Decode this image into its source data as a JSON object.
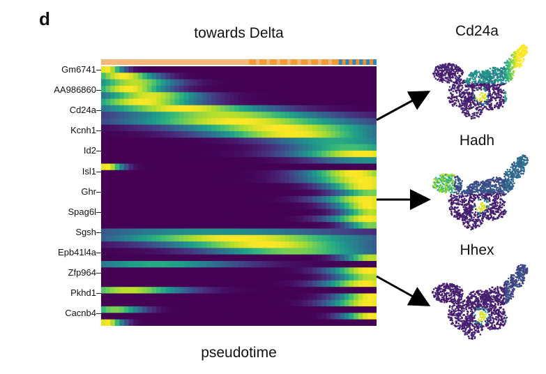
{
  "panel_label": "d",
  "chart_data": {
    "type": "heatmap",
    "title": "towards Delta",
    "xlabel": "pseudotime",
    "ylabel": "",
    "row_labels": [
      "Gm6741",
      "AA986860",
      "Cd24a",
      "Kcnh1",
      "Id2",
      "Isl1",
      "Ghr",
      "Spag6l",
      "Sgsh",
      "Epb41l4a",
      "Zfp964",
      "Pkhd1",
      "Cacnb4"
    ],
    "colormap": "viridis",
    "value_range": [
      0,
      1
    ],
    "n_rows": 40,
    "pseudotime_bar_colors": [
      "#f6b87a",
      "#f39a35",
      "#ef8f2c",
      "#2f86c4"
    ],
    "rows": [
      {
        "peak": 0.02,
        "width": 0.06,
        "amp": 1.0
      },
      {
        "peak": 0.08,
        "width": 0.12,
        "amp": 1.0
      },
      {
        "peak": 0.12,
        "width": 0.15,
        "amp": 0.9
      },
      {
        "peak": 0.1,
        "width": 0.14,
        "amp": 1.0
      },
      {
        "peak": 0.18,
        "width": 0.18,
        "amp": 0.95
      },
      {
        "peak": 0.15,
        "width": 0.2,
        "amp": 1.0
      },
      {
        "peak": 0.3,
        "width": 0.3,
        "amp": 1.0
      },
      {
        "peak": 0.45,
        "width": 0.35,
        "amp": 0.9
      },
      {
        "peak": 0.5,
        "width": 0.4,
        "amp": 1.0
      },
      {
        "peak": 0.65,
        "width": 0.35,
        "amp": 1.0
      },
      {
        "peak": 0.7,
        "width": 0.3,
        "amp": 1.0
      },
      {
        "peak": 0.85,
        "width": 0.25,
        "amp": 0.6
      },
      {
        "peak": 0.9,
        "width": 0.22,
        "amp": 0.7
      },
      {
        "peak": 0.95,
        "width": 0.25,
        "amp": 1.0
      },
      {
        "peak": 0.97,
        "width": 0.2,
        "amp": 0.5
      },
      {
        "peak": 0.02,
        "width": 0.06,
        "amp": 1.0
      },
      {
        "peak": 0.92,
        "width": 0.18,
        "amp": 1.0
      },
      {
        "peak": 0.95,
        "width": 0.2,
        "amp": 1.0
      },
      {
        "peak": 0.96,
        "width": 0.14,
        "amp": 1.0
      },
      {
        "peak": 0.98,
        "width": 0.12,
        "amp": 0.8
      },
      {
        "peak": 0.96,
        "width": 0.16,
        "amp": 1.0
      },
      {
        "peak": 0.97,
        "width": 0.12,
        "amp": 1.0
      },
      {
        "peak": 0.98,
        "width": 0.1,
        "amp": 0.9
      },
      {
        "peak": 0.97,
        "width": 0.14,
        "amp": 1.0
      },
      {
        "peak": 0.98,
        "width": 0.09,
        "amp": 0.8
      },
      {
        "peak": 0.4,
        "width": 0.5,
        "amp": 0.5
      },
      {
        "peak": 0.5,
        "width": 0.45,
        "amp": 1.0
      },
      {
        "peak": 0.6,
        "width": 0.35,
        "amp": 1.0
      },
      {
        "peak": 0.7,
        "width": 0.3,
        "amp": 0.8
      },
      {
        "peak": 0.98,
        "width": 0.1,
        "amp": 0.9
      },
      {
        "peak": 0.2,
        "width": 0.3,
        "amp": 0.6
      },
      {
        "peak": 0.97,
        "width": 0.14,
        "amp": 1.0
      },
      {
        "peak": 0.98,
        "width": 0.12,
        "amp": 0.9
      },
      {
        "peak": 0.96,
        "width": 0.15,
        "amp": 1.0
      },
      {
        "peak": 0.1,
        "width": 0.2,
        "amp": 0.9
      },
      {
        "peak": 0.98,
        "width": 0.12,
        "amp": 1.0
      },
      {
        "peak": 0.97,
        "width": 0.14,
        "amp": 1.0
      },
      {
        "peak": 0.05,
        "width": 0.1,
        "amp": 0.8
      },
      {
        "peak": 0.98,
        "width": 0.1,
        "amp": 1.0
      },
      {
        "peak": 0.02,
        "width": 0.06,
        "amp": 1.0
      }
    ]
  },
  "umaps": [
    {
      "title": "Cd24a",
      "pattern": "tail-high"
    },
    {
      "title": "Hadh",
      "pattern": "left-high"
    },
    {
      "title": "Hhex",
      "pattern": "low"
    }
  ]
}
